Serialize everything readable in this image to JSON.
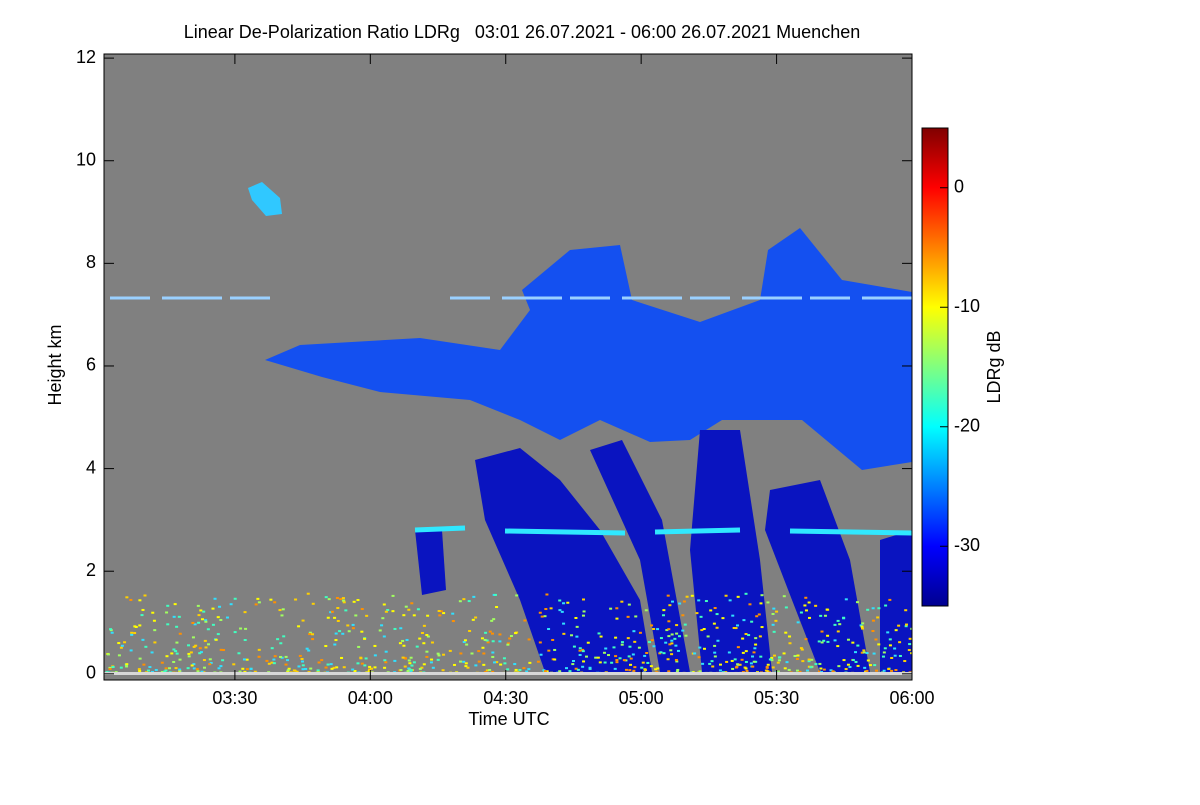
{
  "chart_data": {
    "type": "heatmap",
    "title": "Linear De-Polarization Ratio LDRg   03:01 26.07.2021 - 06:00 26.07.2021 Muenchen",
    "x_label": "Time UTC",
    "y_label": "Height km",
    "xlim": [
      3.0167,
      6.0
    ],
    "xticks": [
      {
        "value": 3.5,
        "label": "03:30"
      },
      {
        "value": 4.0,
        "label": "04:00"
      },
      {
        "value": 4.5,
        "label": "04:30"
      },
      {
        "value": 5.0,
        "label": "05:00"
      },
      {
        "value": 5.5,
        "label": "05:30"
      },
      {
        "value": 6.0,
        "label": "06:00"
      }
    ],
    "ylim": [
      -0.12,
      12.08
    ],
    "yticks": [
      0,
      2,
      4,
      6,
      8,
      10,
      12
    ],
    "colorbar": {
      "label": "LDRg dB",
      "clim": [
        -35,
        5
      ],
      "ticks": [
        0,
        -10,
        -20,
        -30
      ],
      "colormap": [
        "#00008f",
        "#0000ff",
        "#0080ff",
        "#00ffff",
        "#80ff80",
        "#ffff00",
        "#ff8000",
        "#ff0000",
        "#800000"
      ]
    }
  }
}
